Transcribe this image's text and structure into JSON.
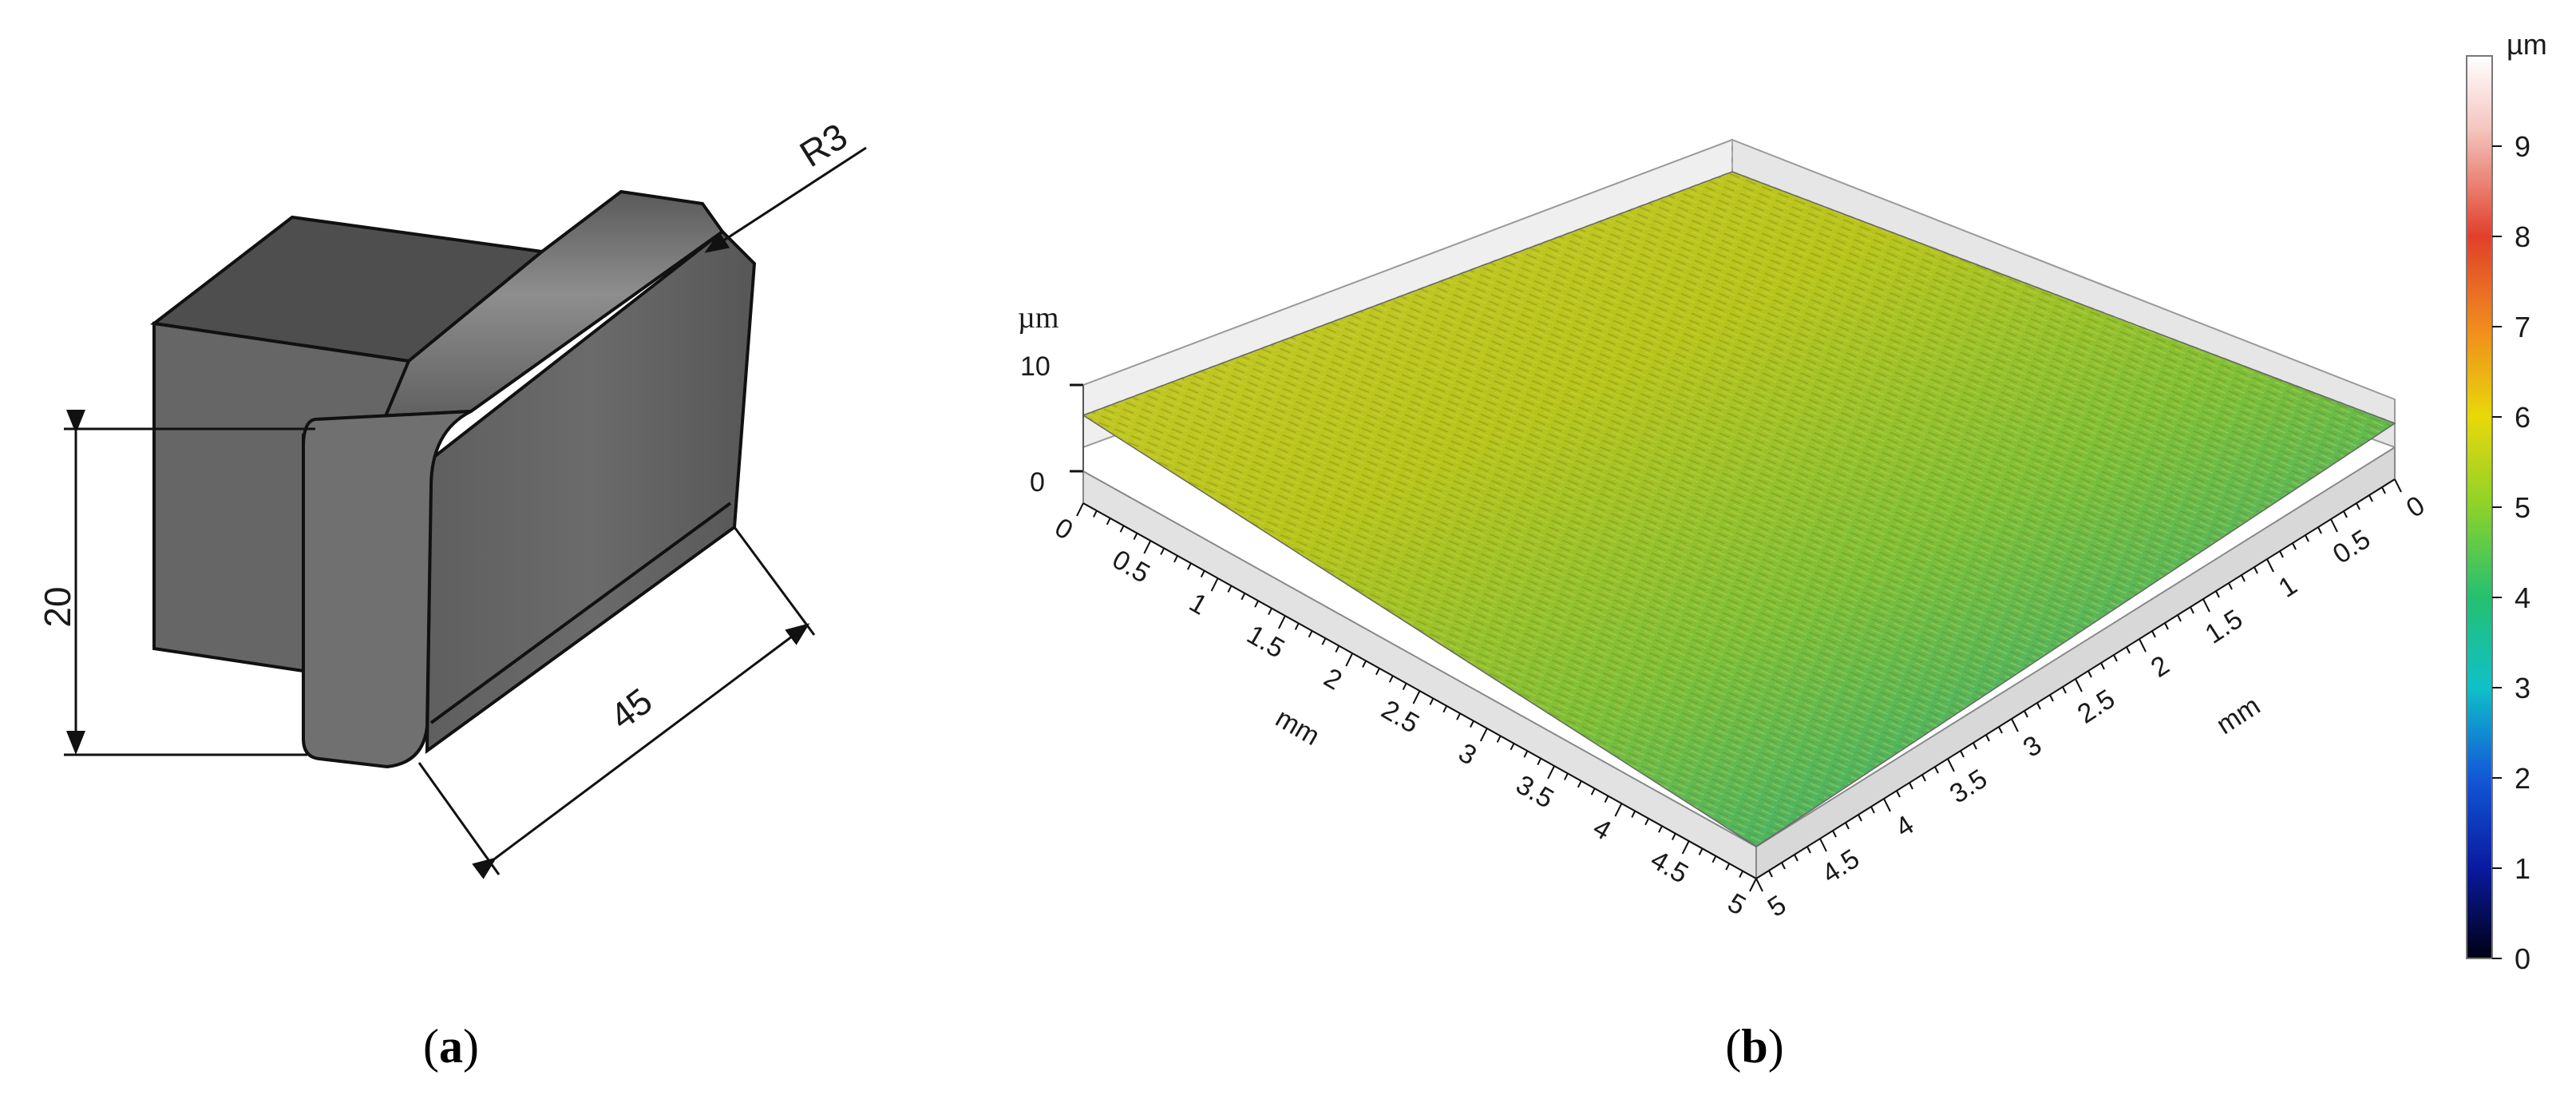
{
  "panel_a": {
    "dim_height": "20",
    "dim_length": "45",
    "dim_radius": "R3",
    "caption_open": "(",
    "caption_letter": "a",
    "caption_close": ")"
  },
  "panel_b": {
    "z_unit": "µm",
    "z_ticks": [
      "10",
      "0"
    ],
    "axis_left_ticks": [
      "0",
      "0.5",
      "1",
      "1.5",
      "2",
      "2.5",
      "3",
      "3.5",
      "4",
      "4.5",
      "5"
    ],
    "axis_right_ticks": [
      "0",
      "0.5",
      "1",
      "1.5",
      "2",
      "2.5",
      "3",
      "3.5",
      "4",
      "4.5",
      "5"
    ],
    "axis_left_label": "mm",
    "axis_right_label": "mm",
    "colorbar_unit": "µm",
    "colorbar_ticks": [
      "9",
      "8",
      "7",
      "6",
      "5",
      "4",
      "3",
      "2",
      "1",
      "0"
    ],
    "colorbar_colors": [
      "#ffffff",
      "#f4b8b0",
      "#e0402a",
      "#f08a1e",
      "#e8d80a",
      "#8cd22a",
      "#24c070",
      "#10c0c8",
      "#1258d8",
      "#0a1aa0",
      "#000014"
    ],
    "caption_open": "(",
    "caption_letter": "b",
    "caption_close": ")"
  }
}
